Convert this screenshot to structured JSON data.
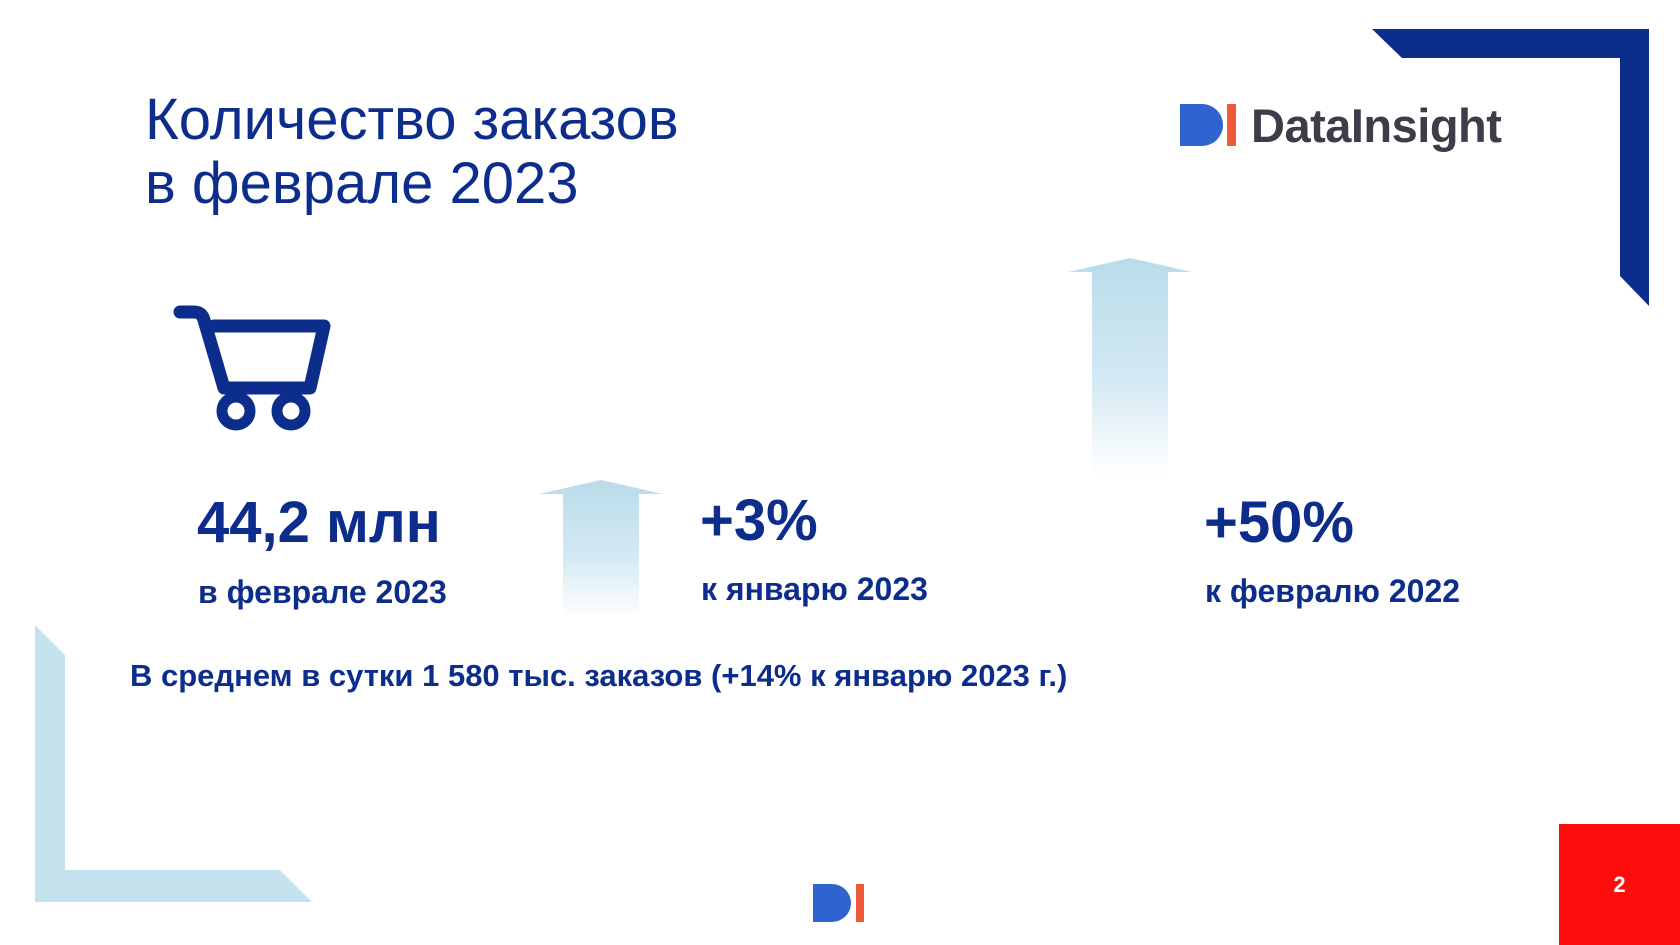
{
  "title": {
    "line1": "Количество заказов",
    "line2": "в феврале 2023"
  },
  "logo": {
    "text": "DataInsight",
    "mark": "DI"
  },
  "icons": {
    "cart": "shopping-cart-icon",
    "arrow": "up-arrow-icon"
  },
  "colors": {
    "brand_navy": "#0c2d8c",
    "logo_blue": "#2f63d0",
    "logo_orange": "#f05a3c",
    "accent_light_blue": "#c5e2ef",
    "page_red": "#ff0d0d"
  },
  "stats": [
    {
      "value": "44,2 млн",
      "label": "в феврале 2023"
    },
    {
      "value": "+3%",
      "label": "к январю 2023"
    },
    {
      "value": "+50%",
      "label": "к февралю 2022"
    }
  ],
  "summary": "В среднем в сутки 1 580 тыс. заказов (+14% к январю 2023 г.)",
  "page_number": "2"
}
